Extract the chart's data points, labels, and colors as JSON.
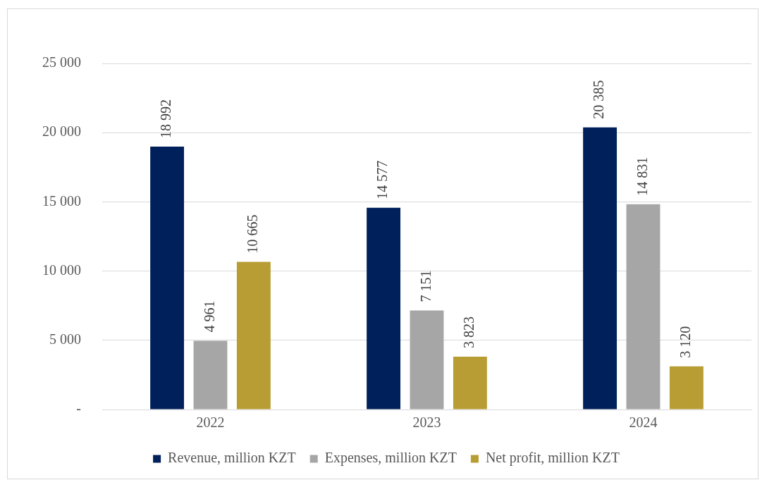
{
  "chart_data": {
    "type": "bar",
    "categories": [
      "2022",
      "2023",
      "2024"
    ],
    "series": [
      {
        "name": "Revenue, million KZT",
        "color": "#00205b",
        "values": [
          18992,
          14577,
          20385
        ],
        "value_labels": [
          "18 992",
          "14 577",
          "20 385"
        ]
      },
      {
        "name": "Expenses, million KZT",
        "color": "#a6a6a6",
        "values": [
          4961,
          7151,
          14831
        ],
        "value_labels": [
          "4 961",
          "7 151",
          "14 831"
        ]
      },
      {
        "name": "Net profit, million KZT",
        "color": "#b89d34",
        "values": [
          10665,
          3823,
          3120
        ],
        "value_labels": [
          "10 665",
          "3 823",
          "3 120"
        ]
      }
    ],
    "ylim": [
      0,
      25000
    ],
    "yticks": [
      {
        "value": 0,
        "label": "-"
      },
      {
        "value": 5000,
        "label": "5 000"
      },
      {
        "value": 10000,
        "label": "10 000"
      },
      {
        "value": 15000,
        "label": "15 000"
      },
      {
        "value": 20000,
        "label": "20 000"
      },
      {
        "value": 25000,
        "label": "25 000"
      }
    ],
    "grid": "y",
    "legend": "bottom"
  }
}
